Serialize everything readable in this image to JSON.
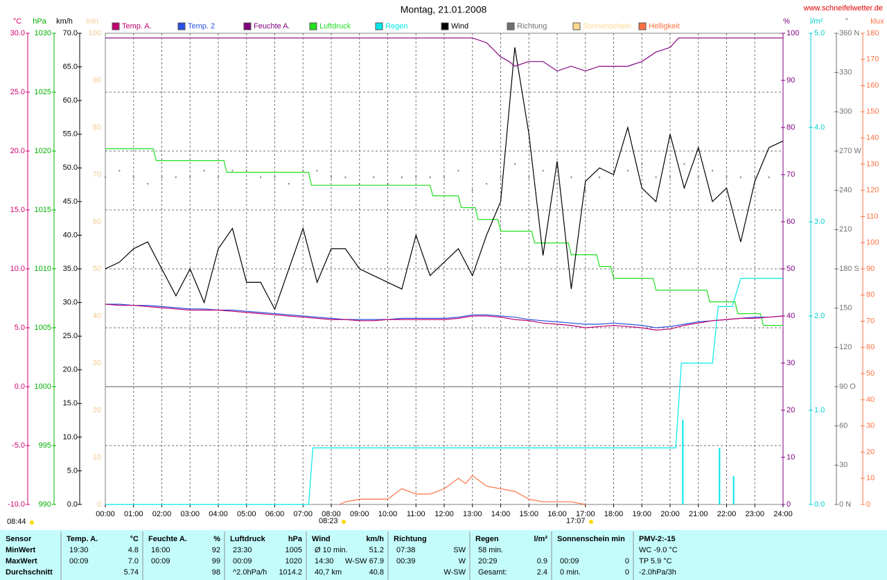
{
  "chart_data": {
    "type": "line",
    "title": "Montag, 21.01.2008",
    "source": "www.schneifelwetter.de",
    "grid": true,
    "xlim": [
      0,
      24
    ],
    "xticks": [
      {
        "value": 0,
        "label": "00:00"
      },
      {
        "value": 1,
        "label": "01:00"
      },
      {
        "value": 2,
        "label": "02:00"
      },
      {
        "value": 3,
        "label": "03:00"
      },
      {
        "value": 4,
        "label": "04:00"
      },
      {
        "value": 5,
        "label": "05:00"
      },
      {
        "value": 6,
        "label": "06:00"
      },
      {
        "value": 7,
        "label": "07:00"
      },
      {
        "value": 8,
        "label": "08:00"
      },
      {
        "value": 9,
        "label": "09:00"
      },
      {
        "value": 10,
        "label": "10:00"
      },
      {
        "value": 11,
        "label": "11:00"
      },
      {
        "value": 12,
        "label": "12:00"
      },
      {
        "value": 13,
        "label": "13:00"
      },
      {
        "value": 14,
        "label": "14:00"
      },
      {
        "value": 15,
        "label": "15:00"
      },
      {
        "value": 16,
        "label": "16:00"
      },
      {
        "value": 17,
        "label": "17:00"
      },
      {
        "value": 18,
        "label": "18:00"
      },
      {
        "value": 19,
        "label": "19:00"
      },
      {
        "value": 20,
        "label": "20:00"
      },
      {
        "value": 21,
        "label": "21:00"
      },
      {
        "value": 22,
        "label": "22:00"
      },
      {
        "value": 23,
        "label": "23:00"
      },
      {
        "value": 24,
        "label": "24:00"
      }
    ],
    "x": [
      0,
      0.5,
      1,
      1.5,
      2,
      2.5,
      3,
      3.5,
      4,
      4.5,
      5,
      5.5,
      6,
      6.5,
      7,
      7.5,
      8,
      8.5,
      9,
      9.5,
      10,
      10.5,
      11,
      11.5,
      12,
      12.5,
      13,
      13.5,
      14,
      14.5,
      15,
      15.5,
      16,
      16.5,
      17,
      17.5,
      18,
      18.5,
      19,
      19.5,
      20,
      20.5,
      21,
      21.5,
      22,
      22.5,
      23,
      23.5,
      24
    ],
    "axes": [
      {
        "unit": "°C",
        "color": "#d0006f",
        "ylim": [
          -10,
          30
        ],
        "yticks": [
          {
            "value": 30,
            "label": "30.0"
          },
          {
            "value": 25,
            "label": "25.0"
          },
          {
            "value": 20,
            "label": "20.0"
          },
          {
            "value": 15,
            "label": "15.0"
          },
          {
            "value": 10,
            "label": "10.0"
          },
          {
            "value": 5,
            "label": "5.0"
          },
          {
            "value": 0,
            "label": "0.0"
          },
          {
            "value": -5,
            "label": "-5.0"
          },
          {
            "value": -10,
            "label": "-10.0"
          }
        ]
      },
      {
        "unit": "hPa",
        "color": "#00b000",
        "ylim": [
          990,
          1030
        ],
        "yticks": [
          1030,
          1025,
          1020,
          1015,
          1010,
          1005,
          1000,
          995,
          990
        ]
      },
      {
        "unit": "km/h",
        "color": "#000000",
        "ylim": [
          0,
          70
        ],
        "yticks": [
          {
            "value": 70,
            "label": "70.0"
          },
          {
            "value": 65,
            "label": "65.0"
          },
          {
            "value": 60,
            "label": "60.0"
          },
          {
            "value": 55,
            "label": "55.0"
          },
          {
            "value": 50,
            "label": "50.0"
          },
          {
            "value": 45,
            "label": "45.0"
          },
          {
            "value": 40,
            "label": "40.0"
          },
          {
            "value": 35,
            "label": "35.0"
          },
          {
            "value": 30,
            "label": "30.0"
          },
          {
            "value": 25,
            "label": "25.0"
          },
          {
            "value": 20,
            "label": "20.0"
          },
          {
            "value": 15,
            "label": "15.0"
          },
          {
            "value": 10,
            "label": "10.0"
          },
          {
            "value": 5,
            "label": "5.0"
          },
          {
            "value": 0,
            "label": "0.0"
          }
        ]
      },
      {
        "unit": "min",
        "color": "#f0c890",
        "ylim": [
          0,
          100
        ],
        "yticks": [
          100,
          90,
          80,
          70,
          60,
          50,
          40,
          30,
          20,
          10,
          0
        ]
      },
      {
        "unit": "%",
        "color": "#800080",
        "ylim": [
          0,
          100
        ],
        "yticks": [
          100,
          90,
          80,
          70,
          60,
          50,
          40,
          30,
          20,
          10,
          0
        ]
      },
      {
        "unit": "l/m²",
        "color": "#00d0d0",
        "ylim": [
          0,
          5
        ],
        "yticks": [
          {
            "value": 5,
            "label": "5.0"
          },
          {
            "value": 4,
            "label": "4.0"
          },
          {
            "value": 3,
            "label": "3.0"
          },
          {
            "value": 2,
            "label": "2.0"
          },
          {
            "value": 1,
            "label": "1.0"
          },
          {
            "value": 0,
            "label": "0.0"
          }
        ]
      },
      {
        "unit": "°",
        "color": "#707070",
        "ylim": [
          0,
          360
        ],
        "yticks": [
          {
            "value": 360,
            "label": "360 N"
          },
          330,
          300,
          {
            "value": 270,
            "label": "270 W"
          },
          240,
          210,
          {
            "value": 180,
            "label": "180 S"
          },
          150,
          120,
          {
            "value": 90,
            "label": "90 O"
          },
          60,
          30,
          {
            "value": 0,
            "label": "0 N"
          }
        ]
      },
      {
        "unit": "klux",
        "color": "#ff7040",
        "ylim": [
          0,
          180
        ],
        "yticks": [
          180,
          170,
          160,
          150,
          140,
          130,
          120,
          110,
          100,
          90,
          80,
          70,
          60,
          50,
          40,
          30,
          20,
          10,
          0
        ]
      }
    ],
    "series": [
      {
        "name": "Temp. A.",
        "color": "#c00070",
        "style": "line",
        "axis": 0,
        "values": [
          7.0,
          6.9,
          6.9,
          6.8,
          6.7,
          6.6,
          6.5,
          6.5,
          6.5,
          6.4,
          6.3,
          6.2,
          6.1,
          6.0,
          5.9,
          5.8,
          5.7,
          5.7,
          5.6,
          5.6,
          5.7,
          5.7,
          5.7,
          5.7,
          5.7,
          5.8,
          6.0,
          6.0,
          5.9,
          5.7,
          5.6,
          5.4,
          5.3,
          5.2,
          5.0,
          5.1,
          5.2,
          5.1,
          5.0,
          4.8,
          4.9,
          5.2,
          5.4,
          5.6,
          5.7,
          5.8,
          5.8,
          5.9,
          6.0
        ]
      },
      {
        "name": "Temp. 2",
        "color": "#2850e0",
        "style": "line",
        "axis": 0,
        "values": [
          7.0,
          7.0,
          6.9,
          6.9,
          6.8,
          6.7,
          6.6,
          6.6,
          6.5,
          6.5,
          6.4,
          6.3,
          6.2,
          6.1,
          6.0,
          5.9,
          5.8,
          5.7,
          5.7,
          5.7,
          5.7,
          5.8,
          5.8,
          5.8,
          5.8,
          5.9,
          6.1,
          6.1,
          6.0,
          5.9,
          5.7,
          5.6,
          5.5,
          5.4,
          5.3,
          5.3,
          5.4,
          5.3,
          5.2,
          5.0,
          5.1,
          5.3,
          5.5,
          5.6,
          5.7,
          5.8,
          5.9,
          5.9,
          6.0
        ]
      },
      {
        "name": "Feuchte A.",
        "color": "#800080",
        "style": "line",
        "axis": 4,
        "x": [
          0,
          13,
          13.5,
          14,
          14.3,
          14.5,
          15,
          15.5,
          16,
          16.5,
          17,
          17.5,
          18,
          18.5,
          19,
          19.5,
          20,
          20.3,
          24
        ],
        "values": [
          99,
          99,
          98,
          95,
          94,
          93,
          94,
          94,
          92,
          93,
          92,
          93,
          93,
          93,
          94,
          96,
          97,
          99,
          99
        ]
      },
      {
        "name": "Luftdruck",
        "color": "#20e020",
        "style": "line",
        "axis": 1,
        "x": [
          0,
          1.7,
          1.8,
          4.2,
          4.3,
          7.2,
          7.3,
          11.5,
          11.6,
          12.5,
          12.6,
          13.1,
          13.2,
          13.9,
          14,
          15.1,
          15.2,
          16.4,
          16.5,
          17.4,
          17.5,
          17.9,
          18,
          19.4,
          19.5,
          21.3,
          21.4,
          22.3,
          22.4,
          23.2,
          23.3,
          24
        ],
        "values": [
          1020.2,
          1020.2,
          1019.2,
          1019.2,
          1018.2,
          1018.2,
          1017.1,
          1017.1,
          1016.2,
          1016.2,
          1015.2,
          1015.2,
          1014.2,
          1014.2,
          1013.2,
          1013.2,
          1012.2,
          1012.2,
          1011.2,
          1011.2,
          1010.2,
          1010.2,
          1009.2,
          1009.2,
          1008.2,
          1008.2,
          1007.2,
          1007.2,
          1006.2,
          1006.2,
          1005.2,
          1005.2
        ]
      },
      {
        "name": "Regen",
        "color": "#00e8e8",
        "style": "line",
        "axis": 5,
        "x": [
          0,
          7.2,
          7.35,
          20.2,
          20.4,
          21.5,
          21.7,
          22.2,
          22.5,
          24
        ],
        "values": [
          0,
          0,
          0.6,
          0.6,
          1.5,
          1.5,
          2.1,
          2.1,
          2.4,
          2.4
        ]
      },
      {
        "name": "Wind",
        "color": "#000000",
        "style": "line",
        "axis": 2,
        "values": [
          35,
          36,
          38,
          39,
          35,
          31,
          35,
          30,
          38,
          41,
          33,
          33,
          29,
          35,
          41,
          33,
          38,
          38,
          35,
          34,
          33,
          32,
          40,
          34,
          36,
          38,
          34,
          40,
          45,
          67.9,
          55,
          37,
          51,
          32,
          48,
          50,
          49,
          56,
          47,
          45,
          55,
          47,
          53,
          45,
          47,
          39,
          48,
          53,
          54
        ]
      },
      {
        "name": "Richtung",
        "color": "#707070",
        "style": "dots",
        "axis": 6,
        "values": [
          250,
          255,
          250,
          245,
          250,
          250,
          250,
          255,
          250,
          255,
          255,
          250,
          250,
          245,
          255,
          255,
          250,
          250,
          245,
          250,
          245,
          250,
          250,
          250,
          250,
          255,
          240,
          245,
          250,
          260,
          250,
          255,
          245,
          250,
          240,
          250,
          255,
          255,
          260,
          250,
          250,
          260,
          250,
          255,
          250,
          250,
          250,
          250,
          250
        ]
      },
      {
        "name": "Sonnenschein",
        "color": "#ffd890",
        "style": "line",
        "axis": 3,
        "x": [],
        "values": []
      },
      {
        "name": "Helligkeit",
        "color": "#ff7040",
        "style": "line",
        "axis": 7,
        "x": [
          8.3,
          8.5,
          9,
          9.5,
          10,
          10.5,
          11,
          11.5,
          12,
          12.5,
          12.75,
          13,
          13.5,
          14,
          14.5,
          15,
          15.5,
          16,
          16.5,
          17
        ],
        "values": [
          0,
          1,
          2,
          2,
          2,
          6,
          4,
          4,
          6,
          10,
          8,
          11,
          7,
          6,
          5,
          2,
          1,
          1,
          1,
          0
        ]
      },
      {
        "color": "#00e8e8",
        "style": "bar",
        "axis": 5,
        "x": [
          20.45,
          21.75,
          22.25
        ],
        "values": [
          0.9,
          0.6,
          0.3
        ]
      }
    ],
    "annotations": [
      "08:44",
      "08:23",
      "17:07"
    ]
  },
  "table": {
    "blocks": [
      {
        "header": [
          "Sensor"
        ],
        "rows": [
          [
            "MinWert"
          ],
          [
            "MaxWert"
          ],
          [
            "Durchschnitt"
          ]
        ]
      },
      {
        "header": [
          "Temp. A.",
          "°C"
        ],
        "rows": [
          [
            "19:30",
            "4.8"
          ],
          [
            "00:09",
            "7.0"
          ],
          [
            null,
            "5.74"
          ]
        ]
      },
      {
        "header": [
          "Feuchte A.",
          "%"
        ],
        "rows": [
          [
            "16:00",
            "92"
          ],
          [
            "00:09",
            "99"
          ],
          [
            null,
            "98"
          ]
        ]
      },
      {
        "header": [
          "Luftdruck",
          "hPa"
        ],
        "rows": [
          [
            "23:30",
            "1005"
          ],
          [
            "00:09",
            "1020"
          ],
          [
            "^2.0hPa/h",
            "1014.2"
          ]
        ]
      },
      {
        "header": [
          "Wind",
          "km/h"
        ],
        "rows": [
          [
            "Ø 10 min.",
            "51.2"
          ],
          [
            "14:30",
            "W-SW 67.9"
          ],
          [
            "40,7 km",
            "40.8"
          ]
        ]
      },
      {
        "header": [
          "Richtung"
        ],
        "rows": [
          [
            "07:38",
            "SW"
          ],
          [
            "00:39",
            "W"
          ],
          [
            null,
            "W-SW"
          ]
        ]
      },
      {
        "header": [
          "Regen",
          "l/m²"
        ],
        "rows": [
          [
            "58 min.",
            null
          ],
          [
            "20:29",
            "0.9"
          ],
          [
            "Gesamt:",
            "2.4"
          ]
        ]
      },
      {
        "header": [
          "Sonnenschein min"
        ],
        "rows": [
          [
            null,
            null
          ],
          [
            "00:09",
            "0"
          ],
          [
            "0 min.",
            "0"
          ]
        ]
      },
      {
        "header": [
          "PMV-2:-15"
        ],
        "rows": [
          [
            "WC -9.0 °C"
          ],
          [
            "TP 5.9 °C"
          ],
          [
            "-2.0hPa/3h"
          ]
        ]
      }
    ]
  }
}
